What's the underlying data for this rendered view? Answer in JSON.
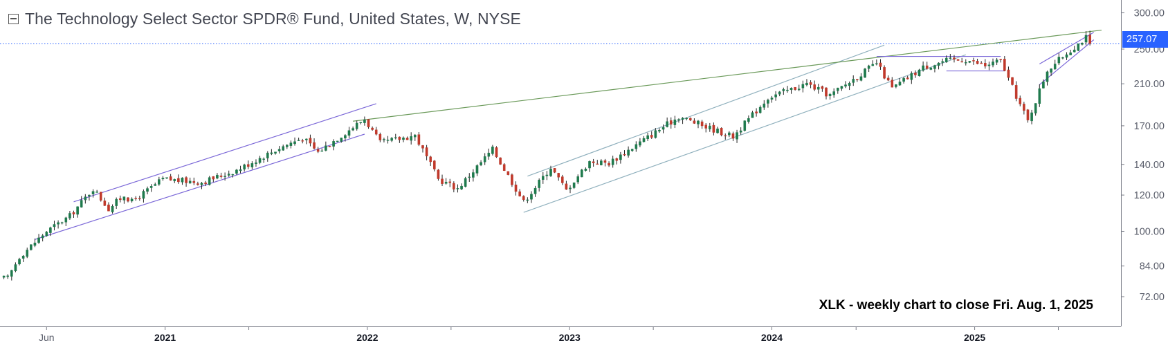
{
  "header": {
    "title": "The Technology Select Sector SPDR® Fund, United States, W, NYSE"
  },
  "annotation": "XLK - weekly chart to close Fri. Aug. 1, 2025",
  "colors": {
    "up": "#26a69a",
    "upBody": "#1f7a4d",
    "down": "#c0392b",
    "wick": "#222222",
    "channel1": "#7b68d8",
    "channel2": "#8fb0bd",
    "greenTrend": "#6b9a5a",
    "priceLine": "#2962ff",
    "axisText": "#5a5e6b"
  },
  "chart_data": {
    "type": "candlestick",
    "symbol": "XLK",
    "timeframe": "W",
    "title": "The Technology Select Sector SPDR® Fund, United States, W, NYSE",
    "last_price": 257.07,
    "last_price_label": "257.07",
    "y_scale": "log",
    "ylim": [
      62,
      320
    ],
    "xlim": [
      "2020-03-09",
      "2025-09-22"
    ],
    "y_ticks": [
      {
        "value": 72,
        "label": "72.00"
      },
      {
        "value": 84,
        "label": "84.00"
      },
      {
        "value": 100,
        "label": "100.00"
      },
      {
        "value": 120,
        "label": "120.00"
      },
      {
        "value": 140,
        "label": "140.00"
      },
      {
        "value": 170,
        "label": "170.00"
      },
      {
        "value": 210,
        "label": "210.00"
      },
      {
        "value": 250,
        "label": "250.00"
      },
      {
        "value": 300,
        "label": "300.00"
      }
    ],
    "x_ticks": [
      {
        "date": "2020-06-01",
        "label": "Jun",
        "bold": false
      },
      {
        "date": "2021-01-01",
        "label": "2021",
        "bold": true
      },
      {
        "date": "2021-06-01",
        "label": "",
        "bold": false
      },
      {
        "date": "2022-01-01",
        "label": "2022",
        "bold": true
      },
      {
        "date": "2022-06-01",
        "label": "",
        "bold": false
      },
      {
        "date": "2023-01-01",
        "label": "2023",
        "bold": true
      },
      {
        "date": "2023-06-01",
        "label": "",
        "bold": false
      },
      {
        "date": "2024-01-01",
        "label": "2024",
        "bold": true
      },
      {
        "date": "2024-06-01",
        "label": "",
        "bold": false
      },
      {
        "date": "2025-01-01",
        "label": "2025",
        "bold": true
      },
      {
        "date": "2025-06-01",
        "label": "",
        "bold": false
      }
    ],
    "anchors": [
      [
        "2020-03-23",
        79
      ],
      [
        "2020-04-13",
        88
      ],
      [
        "2020-06-01",
        100
      ],
      [
        "2020-07-13",
        108
      ],
      [
        "2020-08-24",
        124
      ],
      [
        "2020-09-21",
        112
      ],
      [
        "2020-10-19",
        120
      ],
      [
        "2020-11-02",
        116
      ],
      [
        "2020-12-28",
        130
      ],
      [
        "2021-03-08",
        128
      ],
      [
        "2021-05-10",
        136
      ],
      [
        "2021-07-26",
        152
      ],
      [
        "2021-09-06",
        160
      ],
      [
        "2021-10-04",
        149
      ],
      [
        "2021-12-27",
        176
      ],
      [
        "2022-01-24",
        156
      ],
      [
        "2022-03-28",
        162
      ],
      [
        "2022-05-09",
        130
      ],
      [
        "2022-06-13",
        124
      ],
      [
        "2022-08-15",
        151
      ],
      [
        "2022-10-10",
        116
      ],
      [
        "2022-11-28",
        138
      ],
      [
        "2022-12-26",
        123
      ],
      [
        "2023-02-06",
        142
      ],
      [
        "2023-03-13",
        141
      ],
      [
        "2023-07-17",
        178
      ],
      [
        "2023-10-23",
        161
      ],
      [
        "2023-12-25",
        196
      ],
      [
        "2024-03-04",
        210
      ],
      [
        "2024-04-15",
        198
      ],
      [
        "2024-07-08",
        233
      ],
      [
        "2024-08-05",
        205
      ],
      [
        "2024-09-30",
        228
      ],
      [
        "2024-11-11",
        236
      ],
      [
        "2024-12-16",
        237
      ],
      [
        "2025-01-20",
        230
      ],
      [
        "2025-02-17",
        236
      ],
      [
        "2025-03-10",
        206
      ],
      [
        "2025-04-07",
        174
      ],
      [
        "2025-05-12",
        225
      ],
      [
        "2025-06-16",
        245
      ],
      [
        "2025-07-21",
        265
      ],
      [
        "2025-08-01",
        257.07
      ]
    ],
    "trendlines": [
      {
        "color": "channel1",
        "p1": [
          "2020-07-20",
          116
        ],
        "p2": [
          "2022-01-17",
          190
        ]
      },
      {
        "color": "channel1",
        "p1": [
          "2020-05-11",
          96
        ],
        "p2": [
          "2021-12-27",
          163
        ]
      },
      {
        "color": "channel2",
        "p1": [
          "2022-10-17",
          132
        ],
        "p2": [
          "2024-07-22",
          255
        ]
      },
      {
        "color": "channel2",
        "p1": [
          "2022-10-10",
          110
        ],
        "p2": [
          "2024-12-16",
          243
        ]
      },
      {
        "color": "greenTrend",
        "p1": [
          "2021-12-06",
          174
        ],
        "p2": [
          "2025-08-18",
          275
        ]
      },
      {
        "color": "channel1",
        "p1": [
          "2025-04-28",
          209
        ],
        "p2": [
          "2025-08-04",
          262
        ]
      },
      {
        "color": "channel1",
        "p1": [
          "2025-04-28",
          232
        ],
        "p2": [
          "2025-08-04",
          272
        ]
      },
      {
        "color": "channel1",
        "p1": [
          "2024-07-08",
          241
        ],
        "p2": [
          "2025-02-17",
          241
        ]
      },
      {
        "color": "channel1",
        "p1": [
          "2024-11-11",
          224
        ],
        "p2": [
          "2025-02-24",
          224
        ]
      }
    ]
  }
}
